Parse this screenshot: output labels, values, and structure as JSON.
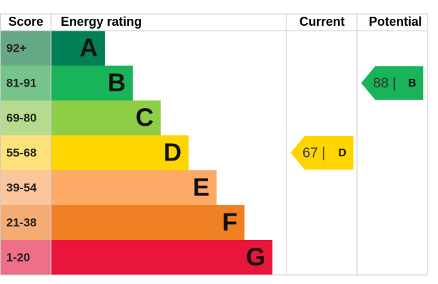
{
  "header": {
    "score": "Score",
    "rating": "Energy rating",
    "current": "Current",
    "potential": "Potential"
  },
  "bands": [
    {
      "score": "92+",
      "letter": "A",
      "color": "#008054",
      "score_color": "#65a886"
    },
    {
      "score": "81-91",
      "letter": "B",
      "color": "#19b459",
      "score_color": "#74c48c"
    },
    {
      "score": "69-80",
      "letter": "C",
      "color": "#8dce46",
      "score_color": "#b6da8e"
    },
    {
      "score": "55-68",
      "letter": "D",
      "color": "#ffd500",
      "score_color": "#fde27a"
    },
    {
      "score": "39-54",
      "letter": "E",
      "color": "#fcaa65",
      "score_color": "#fbc69b"
    },
    {
      "score": "21-38",
      "letter": "F",
      "color": "#ef8023",
      "score_color": "#f4ab74"
    },
    {
      "score": "1-20",
      "letter": "G",
      "color": "#e9153b",
      "score_color": "#ef6f88"
    }
  ],
  "current": {
    "label": "67 |",
    "rating": "D"
  },
  "potential": {
    "label": "88 |",
    "rating": "B"
  }
}
